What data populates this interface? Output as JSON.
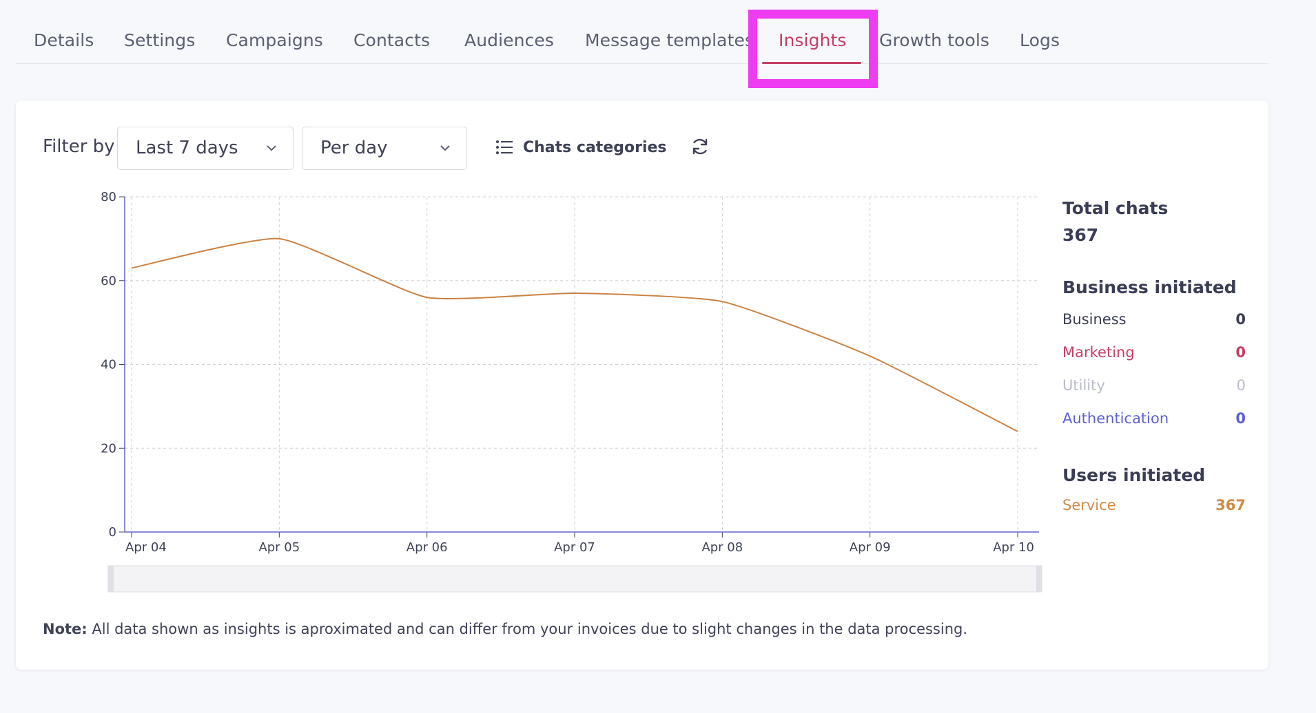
{
  "tabs": [
    {
      "label": "Details"
    },
    {
      "label": "Settings"
    },
    {
      "label": "Campaigns"
    },
    {
      "label": "Contacts"
    },
    {
      "label": "Audiences"
    },
    {
      "label": "Message templates"
    },
    {
      "label": "Insights",
      "active": true
    },
    {
      "label": "Growth tools"
    },
    {
      "label": "Logs"
    }
  ],
  "filters": {
    "label": "Filter by",
    "range_value": "Last 7 days",
    "granularity_value": "Per day",
    "categories_label": "Chats categories"
  },
  "stats": {
    "total_label": "Total chats",
    "total_value": "367",
    "business_initiated_title": "Business initiated",
    "business_label": "Business",
    "business_value": "0",
    "marketing_label": "Marketing",
    "marketing_value": "0",
    "utility_label": "Utility",
    "utility_value": "0",
    "authentication_label": "Authentication",
    "authentication_value": "0",
    "users_initiated_title": "Users initiated",
    "service_label": "Service",
    "service_value": "367"
  },
  "note": {
    "prefix": "Note:",
    "text": " All data shown as insights is aproximated and can differ from your invoices due to slight changes in the data processing."
  },
  "colors": {
    "accent": "#c63d63",
    "highlight": "#ee3cf0",
    "line": "#cc8142",
    "axis": "#6366c8",
    "business": "#3a3d55",
    "marketing": "#c63d63",
    "utility": "#b9bbc8",
    "authentication": "#5b5fd6",
    "service": "#d08a45"
  },
  "chart_data": {
    "type": "line",
    "categories": [
      "Apr 04",
      "Apr 05",
      "Apr 06",
      "Apr 07",
      "Apr 08",
      "Apr 09",
      "Apr 10"
    ],
    "series": [
      {
        "values": [
          63,
          70,
          56,
          57,
          55,
          42,
          24
        ]
      }
    ],
    "yticks": [
      0,
      20,
      40,
      60,
      80
    ],
    "ylim": [
      0,
      80
    ],
    "grid": true
  }
}
